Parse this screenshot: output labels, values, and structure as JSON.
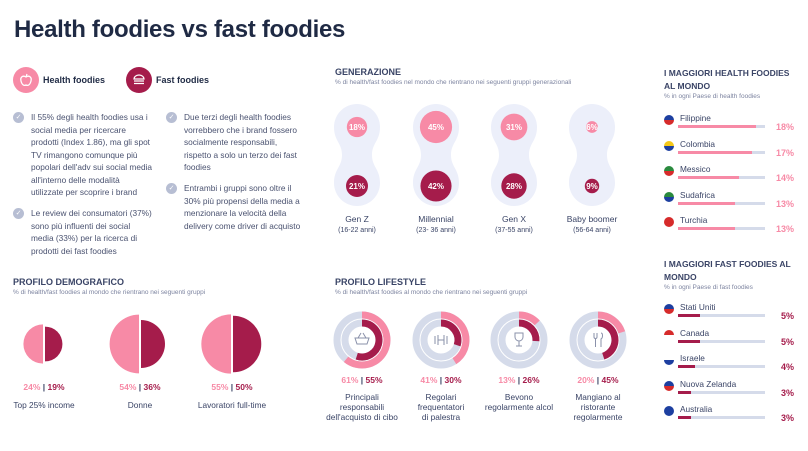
{
  "title": "Health foodies vs fast foodies",
  "colors": {
    "health": "#f78aa6",
    "fast": "#a51c4b",
    "capsule": "#eceffa",
    "track": "#d5dbea"
  },
  "legend": {
    "health": {
      "label": "Health foodies",
      "icon": "apple-icon"
    },
    "fast": {
      "label": "Fast foodies",
      "icon": "burger-icon"
    }
  },
  "bullets": [
    "Il 55% degli health foodies usa i social media per ricercare prodotti (Index 1.86), ma gli spot TV rimangono comunque più popolari dell'adv sui social media all'interno delle modalità utilizzate per scoprire i brand",
    "Le review dei consumatori (37%) sono più influenti dei social media (33%) per la ricerca di prodotti dei fast foodies",
    "Due terzi degli health foodies vorrebbero che i brand fossero socialmente responsabili, rispetto a solo un terzo dei fast foodies",
    "Entrambi i gruppi sono oltre il 30% più propensi della media a menzionare la velocità della delivery come driver di acquisto"
  ],
  "chart_data": [
    {
      "type": "bubble",
      "title": "GENERAZIONE",
      "subtitle": "% di health/fast foodies nel mondo che rientrano nei seguenti gruppi generazionali",
      "categories": [
        {
          "name": "Gen Z",
          "range": "(16-22 anni)"
        },
        {
          "name": "Millennial",
          "range": "(23- 36 anni)"
        },
        {
          "name": "Gen X",
          "range": "(37-55 anni)"
        },
        {
          "name": "Baby boomer",
          "range": "(56-64 anni)"
        }
      ],
      "series": [
        {
          "name": "Health foodies",
          "values": [
            18,
            45,
            31,
            6
          ]
        },
        {
          "name": "Fast foodies",
          "values": [
            21,
            42,
            28,
            9
          ]
        }
      ],
      "unit": "%"
    },
    {
      "type": "half-circles",
      "title": "PROFILO DEMOGRAFICO",
      "subtitle": "% di health/fast foodies al mondo che rientrano nei seguenti gruppi",
      "categories": [
        "Top 25% income",
        "Donne",
        "Lavoratori full-time"
      ],
      "series": [
        {
          "name": "Health foodies",
          "values": [
            24,
            54,
            55
          ]
        },
        {
          "name": "Fast foodies",
          "values": [
            19,
            36,
            50
          ]
        }
      ]
    },
    {
      "type": "donut",
      "title": "PROFILO LIFESTYLE",
      "subtitle": "% di health/fast foodies al mondo che rientrano nei seguenti gruppi",
      "categories": [
        "Principali responsabili dell'acquisto di cibo",
        "Regolari frequentatori di palestra",
        "Bevono regolarmente alcol",
        "Mangiano al ristorante regolarmente"
      ],
      "icons": [
        "basket-icon",
        "dumbbell-icon",
        "wine-glass-icon",
        "cutlery-icon"
      ],
      "series": [
        {
          "name": "Health foodies",
          "values": [
            61,
            41,
            13,
            20
          ]
        },
        {
          "name": "Fast foodies",
          "values": [
            55,
            30,
            26,
            45
          ]
        }
      ]
    },
    {
      "type": "bar",
      "title": "I MAGGIORI HEALTH FOODIES AL MONDO",
      "subtitle": "% in ogni Paese di health foodies",
      "categories": [
        "Filippine",
        "Colombia",
        "Messico",
        "Sudafrica",
        "Turchia"
      ],
      "values": [
        18,
        17,
        14,
        13,
        13
      ],
      "xlim": [
        0,
        20
      ],
      "unit": "%"
    },
    {
      "type": "bar",
      "title": "I MAGGIORI FAST FOODIES AL MONDO",
      "subtitle": "% in ogni Paese di fast foodies",
      "categories": [
        "Stati Uniti",
        "Canada",
        "Israele",
        "Nuova Zelanda",
        "Australia"
      ],
      "values": [
        5,
        5,
        4,
        3,
        3
      ],
      "xlim": [
        0,
        20
      ],
      "unit": "%"
    }
  ],
  "flags": {
    "Filippine": [
      "#1d3fa0",
      "#d62b2b"
    ],
    "Colombia": [
      "#f4c81a",
      "#1d3fa0"
    ],
    "Messico": [
      "#2a8a3e",
      "#d62b2b"
    ],
    "Sudafrica": [
      "#2a8a3e",
      "#1d3fa0"
    ],
    "Turchia": [
      "#d62b2b",
      "#d62b2b"
    ],
    "Stati Uniti": [
      "#1d3fa0",
      "#d62b2b"
    ],
    "Canada": [
      "#d62b2b",
      "#ffffff"
    ],
    "Israele": [
      "#ffffff",
      "#1d3fa0"
    ],
    "Nuova Zelanda": [
      "#1d3fa0",
      "#d62b2b"
    ],
    "Australia": [
      "#1d3fa0",
      "#1d3fa0"
    ]
  }
}
